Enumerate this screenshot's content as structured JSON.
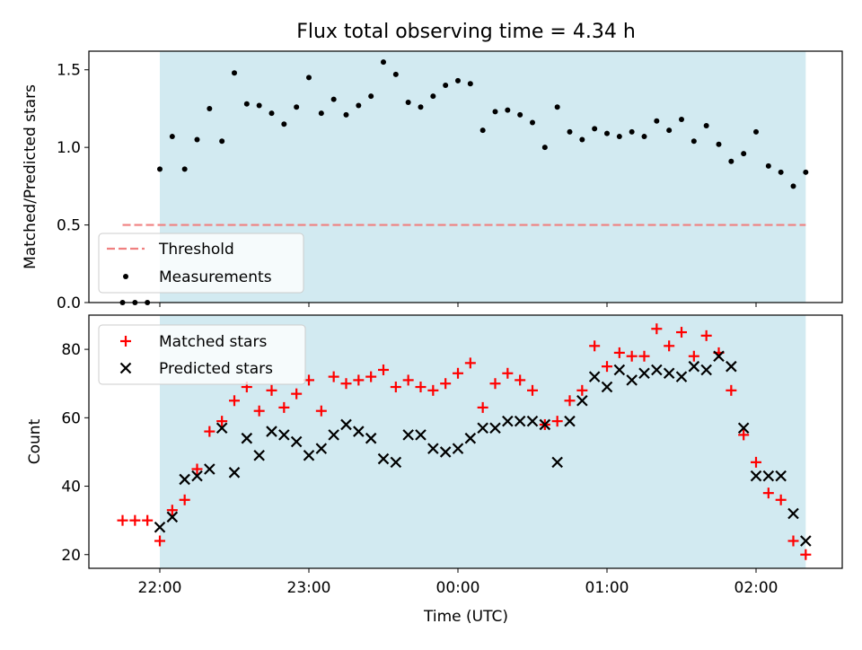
{
  "chart_data": [
    {
      "type": "scatter",
      "title": "Flux total observing time = 4.34 h",
      "ylabel": "Matched/Predicted stars",
      "xlabel": "",
      "ylim": [
        0,
        1.62
      ],
      "yticks": [
        "0.0",
        "0.5",
        "1.0",
        "1.5"
      ],
      "shaded_span": {
        "start": "22:00",
        "end": "02:20",
        "color": "#add8e6"
      },
      "legend": {
        "position": "lower-left",
        "entries": [
          "Threshold",
          "Measurements"
        ]
      },
      "threshold": {
        "name": "Threshold",
        "value": 0.5,
        "x_start": "21:45",
        "x_end": "02:20",
        "color": "#f08080"
      },
      "series": [
        {
          "name": "Measurements",
          "color": "#000000",
          "x": [
            "21:45",
            "21:50",
            "21:55",
            "22:00",
            "22:05",
            "22:10",
            "22:15",
            "22:20",
            "22:25",
            "22:30",
            "22:35",
            "22:40",
            "22:45",
            "22:50",
            "22:55",
            "23:00",
            "23:05",
            "23:10",
            "23:15",
            "23:20",
            "23:25",
            "23:30",
            "23:35",
            "23:40",
            "23:45",
            "23:50",
            "23:55",
            "00:00",
            "00:05",
            "00:10",
            "00:15",
            "00:20",
            "00:25",
            "00:30",
            "00:35",
            "00:40",
            "00:45",
            "00:50",
            "00:55",
            "01:00",
            "01:05",
            "01:10",
            "01:15",
            "01:20",
            "01:25",
            "01:30",
            "01:35",
            "01:40",
            "01:45",
            "01:50",
            "01:55",
            "02:00",
            "02:05",
            "02:10",
            "02:15",
            "02:20"
          ],
          "values": [
            0.0,
            0.0,
            0.0,
            0.86,
            1.07,
            0.86,
            1.05,
            1.25,
            1.04,
            1.48,
            1.28,
            1.27,
            1.22,
            1.15,
            1.26,
            1.45,
            1.22,
            1.31,
            1.21,
            1.27,
            1.33,
            1.55,
            1.47,
            1.29,
            1.26,
            1.33,
            1.4,
            1.43,
            1.41,
            1.11,
            1.23,
            1.24,
            1.21,
            1.16,
            1.0,
            1.26,
            1.1,
            1.05,
            1.12,
            1.09,
            1.07,
            1.1,
            1.07,
            1.17,
            1.11,
            1.18,
            1.04,
            1.14,
            1.02,
            0.91,
            0.96,
            1.1,
            0.88,
            0.84,
            0.75,
            0.84
          ]
        }
      ]
    },
    {
      "type": "scatter",
      "title": "",
      "ylabel": "Count",
      "xlabel": "Time (UTC)",
      "ylim": [
        16,
        90
      ],
      "yticks": [
        "20",
        "40",
        "60",
        "80"
      ],
      "xticks": [
        "22:00",
        "23:00",
        "00:00",
        "01:00",
        "02:00"
      ],
      "shaded_span": {
        "start": "22:00",
        "end": "02:20",
        "color": "#add8e6"
      },
      "legend": {
        "position": "upper-left",
        "entries": [
          "Matched stars",
          "Predicted stars"
        ]
      },
      "x": [
        "21:45",
        "21:50",
        "21:55",
        "22:00",
        "22:05",
        "22:10",
        "22:15",
        "22:20",
        "22:25",
        "22:30",
        "22:35",
        "22:40",
        "22:45",
        "22:50",
        "22:55",
        "23:00",
        "23:05",
        "23:10",
        "23:15",
        "23:20",
        "23:25",
        "23:30",
        "23:35",
        "23:40",
        "23:45",
        "23:50",
        "23:55",
        "00:00",
        "00:05",
        "00:10",
        "00:15",
        "00:20",
        "00:25",
        "00:30",
        "00:35",
        "00:40",
        "00:45",
        "00:50",
        "00:55",
        "01:00",
        "01:05",
        "01:10",
        "01:15",
        "01:20",
        "01:25",
        "01:30",
        "01:35",
        "01:40",
        "01:45",
        "01:50",
        "01:55",
        "02:00",
        "02:05",
        "02:10",
        "02:15",
        "02:20"
      ],
      "series": [
        {
          "name": "Matched stars",
          "marker": "plus",
          "color": "#ff0000",
          "values": [
            30,
            30,
            30,
            24,
            33,
            36,
            45,
            56,
            59,
            65,
            69,
            62,
            68,
            63,
            67,
            71,
            62,
            72,
            70,
            71,
            72,
            74,
            69,
            71,
            69,
            68,
            70,
            73,
            76,
            63,
            70,
            73,
            71,
            68,
            58,
            59,
            65,
            68,
            81,
            75,
            79,
            78,
            78,
            86,
            81,
            85,
            78,
            84,
            79,
            68,
            55,
            47,
            38,
            36,
            24,
            20
          ]
        },
        {
          "name": "Predicted stars",
          "marker": "x",
          "color": "#000000",
          "values": [
            null,
            null,
            null,
            28,
            31,
            42,
            43,
            45,
            57,
            44,
            54,
            49,
            56,
            55,
            53,
            49,
            51,
            55,
            58,
            56,
            54,
            48,
            47,
            55,
            55,
            51,
            50,
            51,
            54,
            57,
            57,
            59,
            59,
            59,
            58,
            47,
            59,
            65,
            72,
            69,
            74,
            71,
            73,
            74,
            73,
            72,
            75,
            74,
            78,
            75,
            57,
            43,
            43,
            43,
            32,
            24
          ]
        }
      ]
    }
  ]
}
